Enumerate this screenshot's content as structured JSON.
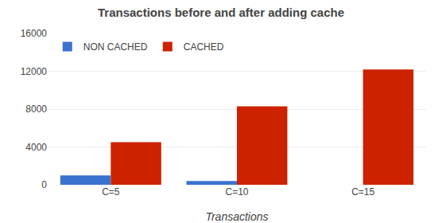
{
  "chart_data": {
    "type": "bar",
    "title": "Transactions before and after adding cache",
    "xlabel": "Transactions",
    "categories": [
      "C=5",
      "C=10",
      "C=15"
    ],
    "series": [
      {
        "name": "NON CACHED",
        "color": "#3a72d0",
        "values": [
          1000,
          400,
          0
        ]
      },
      {
        "name": "CACHED",
        "color": "#cc2200",
        "values": [
          4500,
          8300,
          12200
        ]
      }
    ],
    "ylim": [
      0,
      16000
    ],
    "yticks": [
      0,
      4000,
      8000,
      12000,
      16000
    ],
    "grid": true,
    "legend": "upper left"
  }
}
